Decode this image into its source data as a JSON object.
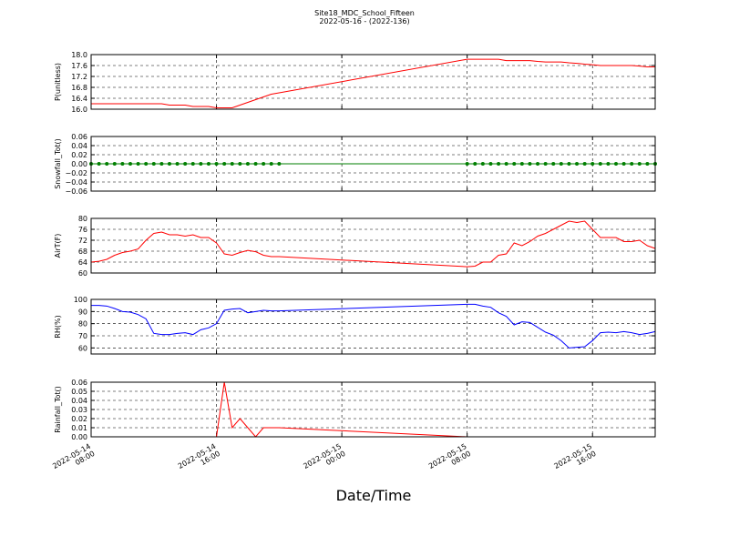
{
  "chart_data": {
    "type": "line",
    "title": "Site18_MDC_School_Fifteen",
    "subtitle": "2022-05-16 - (2022-136)",
    "x_label": "Date/Time",
    "grid": true,
    "xlim": [
      "2022-05-14 08:00",
      "2022-05-15 20:00"
    ],
    "xticks": [
      "2022-05-14 08:00",
      "2022-05-14 16:00",
      "2022-05-15 00:00",
      "2022-05-15 08:00",
      "2022-05-15 16:00"
    ],
    "x": [
      "2022-05-14 08:00",
      "2022-05-14 08:30",
      "2022-05-14 09:00",
      "2022-05-14 09:30",
      "2022-05-14 10:00",
      "2022-05-14 10:30",
      "2022-05-14 11:00",
      "2022-05-14 11:30",
      "2022-05-14 12:00",
      "2022-05-14 12:30",
      "2022-05-14 13:00",
      "2022-05-14 13:30",
      "2022-05-14 14:00",
      "2022-05-14 14:30",
      "2022-05-14 15:00",
      "2022-05-14 15:30",
      "2022-05-14 16:00",
      "2022-05-14 16:30",
      "2022-05-14 17:00",
      "2022-05-14 17:30",
      "2022-05-14 18:00",
      "2022-05-14 18:30",
      "2022-05-14 19:00",
      "2022-05-14 19:30",
      "2022-05-14 20:00",
      "2022-05-15 08:00",
      "2022-05-15 08:30",
      "2022-05-15 09:00",
      "2022-05-15 09:30",
      "2022-05-15 10:00",
      "2022-05-15 10:30",
      "2022-05-15 11:00",
      "2022-05-15 11:30",
      "2022-05-15 12:00",
      "2022-05-15 12:30",
      "2022-05-15 13:00",
      "2022-05-15 13:30",
      "2022-05-15 14:00",
      "2022-05-15 14:30",
      "2022-05-15 15:00",
      "2022-05-15 15:30",
      "2022-05-15 16:00",
      "2022-05-15 16:30",
      "2022-05-15 17:00",
      "2022-05-15 17:30",
      "2022-05-15 18:00",
      "2022-05-15 18:30",
      "2022-05-15 19:00",
      "2022-05-15 19:30",
      "2022-05-15 20:00"
    ],
    "panels": [
      {
        "y_label": "P(unitless)",
        "ylim": [
          16.0,
          18.0
        ],
        "yticks": [
          {
            "value": 16.0,
            "label": "16.0"
          },
          16.4,
          16.8,
          17.2,
          17.6,
          {
            "value": 18.0,
            "label": "18.0"
          }
        ],
        "series": [
          {
            "color": "#ff0000",
            "values": [
              16.2,
              16.2,
              16.2,
              16.2,
              16.2,
              16.2,
              16.2,
              16.2,
              16.2,
              16.2,
              16.15,
              16.15,
              16.15,
              16.1,
              16.1,
              16.1,
              16.05,
              16.05,
              16.05,
              16.15,
              16.25,
              16.35,
              16.45,
              16.55,
              16.6,
              17.83,
              17.83,
              17.83,
              17.83,
              17.83,
              17.78,
              17.78,
              17.78,
              17.78,
              17.75,
              17.73,
              17.73,
              17.73,
              17.7,
              17.68,
              17.65,
              17.63,
              17.6,
              17.6,
              17.6,
              17.6,
              17.6,
              17.58,
              17.55,
              17.55
            ]
          }
        ]
      },
      {
        "y_label": "Snowfall_Tot()",
        "ylim": [
          -0.06,
          0.06
        ],
        "markers": true,
        "yticks": [
          {
            "value": -0.06,
            "label": "−0.06"
          },
          {
            "value": -0.04,
            "label": "−0.04"
          },
          {
            "value": -0.02,
            "label": "−0.02"
          },
          {
            "value": 0,
            "label": "0.00"
          },
          0.02,
          0.04,
          0.06
        ],
        "series": [
          {
            "color": "#007f00",
            "values": [
              0,
              0,
              0,
              0,
              0,
              0,
              0,
              0,
              0,
              0,
              0,
              0,
              0,
              0,
              0,
              0,
              0,
              0,
              0,
              0,
              0,
              0,
              0,
              0,
              0,
              0,
              0,
              0,
              0,
              0,
              0,
              0,
              0,
              0,
              0,
              0,
              0,
              0,
              0,
              0,
              0,
              0,
              0,
              0,
              0,
              0,
              0,
              0,
              0,
              0
            ]
          }
        ]
      },
      {
        "y_label": "AirT(F)",
        "ylim": [
          60,
          80
        ],
        "yticks": [
          60,
          64,
          68,
          72,
          76,
          80
        ],
        "series": [
          {
            "color": "#ff0000",
            "values": [
              64,
              64.3,
              65,
              66.5,
              67.5,
              68,
              68.8,
              72,
              74.5,
              75,
              74,
              74,
              73.5,
              74,
              73,
              73,
              71,
              67,
              66.5,
              67.5,
              68.3,
              67.8,
              66.5,
              66,
              66,
              62.3,
              62.5,
              64,
              64,
              66.5,
              67,
              71,
              70,
              71.5,
              73.5,
              74.5,
              76,
              77.5,
              79,
              78.5,
              79,
              76,
              73,
              73,
              73,
              71.5,
              71.5,
              72,
              70,
              69
            ]
          }
        ]
      },
      {
        "y_label": "RH(%)",
        "ylim": [
          55,
          100
        ],
        "yticks": [
          60,
          70,
          80,
          90,
          100
        ],
        "series": [
          {
            "color": "#0000ff",
            "values": [
              95,
              95,
              94.5,
              92.5,
              90,
              89.5,
              87.5,
              84,
              72,
              71,
              71,
              72,
              72.5,
              71,
              75,
              76.5,
              80,
              91,
              92,
              92.5,
              89,
              90,
              91,
              90.5,
              90.5,
              96,
              96,
              94.5,
              93.5,
              89,
              86,
              79,
              81.5,
              81,
              77,
              73,
              70.5,
              66,
              60,
              60.5,
              61,
              66,
              72.5,
              73,
              72.5,
              73.5,
              72.5,
              71,
              72,
              73.5
            ]
          }
        ]
      },
      {
        "y_label": "Rainfall_Tot()",
        "ylim": [
          0,
          0.06
        ],
        "yticks": [
          {
            "value": 0,
            "label": "0.00"
          },
          0.01,
          0.02,
          0.03,
          0.04,
          0.05,
          0.06
        ],
        "series": [
          {
            "color": "#ff0000",
            "values": [
              0,
              0,
              0,
              0,
              0,
              0,
              0,
              0,
              0,
              0,
              0,
              0,
              0,
              0,
              0,
              0,
              0,
              0.06,
              0.01,
              0.02,
              0.01,
              0,
              0.01,
              0.01,
              0.01,
              0,
              0,
              0,
              0,
              0,
              0,
              0,
              0,
              0,
              0,
              0,
              0,
              0,
              0,
              0,
              0,
              0,
              0,
              0,
              0,
              0,
              0,
              0,
              0,
              0
            ]
          }
        ]
      }
    ]
  }
}
